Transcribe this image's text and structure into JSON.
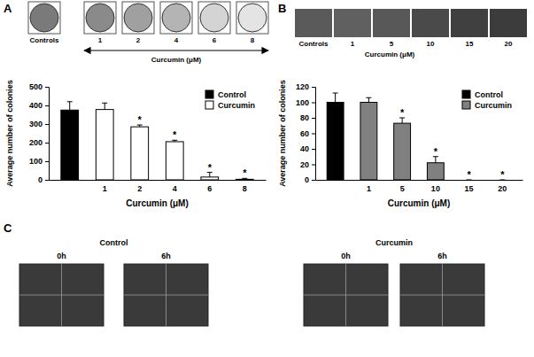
{
  "chart_data": [
    {
      "type": "bar",
      "x_label": "Curcumin (μM)",
      "y_label": "Average number of colonies",
      "categories": [
        null,
        "1",
        "2",
        "4",
        "6",
        "8"
      ],
      "series": [
        {
          "name": "Control",
          "color": "#000000",
          "values": [
            375,
            null,
            null,
            null,
            null,
            null
          ],
          "errors": [
            45,
            null,
            null,
            null,
            null,
            null
          ]
        },
        {
          "name": "Curcumin",
          "color": "#ffffff",
          "values": [
            null,
            378,
            285,
            205,
            15,
            3
          ],
          "errors": [
            null,
            35,
            10,
            8,
            25,
            5
          ]
        }
      ],
      "annotations": [
        null,
        null,
        "*",
        "*",
        "*",
        "*"
      ],
      "ylim": [
        0,
        500
      ],
      "yticks": [
        0,
        100,
        200,
        300,
        400,
        500
      ],
      "legend": "top-right",
      "grid": false
    },
    {
      "type": "bar",
      "x_label": "Curcumin (μM)",
      "y_label": "Average number of colonies",
      "categories": [
        null,
        "1",
        "5",
        "10",
        "15",
        "20"
      ],
      "series": [
        {
          "name": "Control",
          "color": "#000000",
          "values": [
            100,
            null,
            null,
            null,
            null,
            null
          ],
          "errors": [
            12,
            null,
            null,
            null,
            null,
            null
          ]
        },
        {
          "name": "Curcumin",
          "color": "#808080",
          "values": [
            null,
            100,
            73,
            22,
            0,
            0
          ],
          "errors": [
            null,
            6,
            7,
            8,
            0,
            0
          ]
        }
      ],
      "annotations": [
        null,
        null,
        "*",
        "*",
        "*",
        "*"
      ],
      "ylim": [
        0,
        120
      ],
      "yticks": [
        0,
        20,
        40,
        60,
        80,
        100,
        120
      ],
      "legend": "top-right",
      "grid": false
    }
  ],
  "figure": {
    "panel_labels": [
      "A",
      "B",
      "C"
    ],
    "strips": [
      {
        "control_label": "Controls",
        "dose_labels": [
          "1",
          "2",
          "4",
          "6",
          "8"
        ],
        "dose_title": "Curcumin (μM)"
      },
      {
        "control_label": "Controls",
        "dose_labels": [
          "1",
          "5",
          "10",
          "15",
          "20"
        ],
        "dose_title": "Curcumin (μM)"
      }
    ],
    "panel_c": {
      "groups": [
        {
          "title": "Control",
          "times": [
            "0h",
            "6h"
          ]
        },
        {
          "title": "Curcumin",
          "times": [
            "0h",
            "6h"
          ]
        }
      ]
    }
  }
}
